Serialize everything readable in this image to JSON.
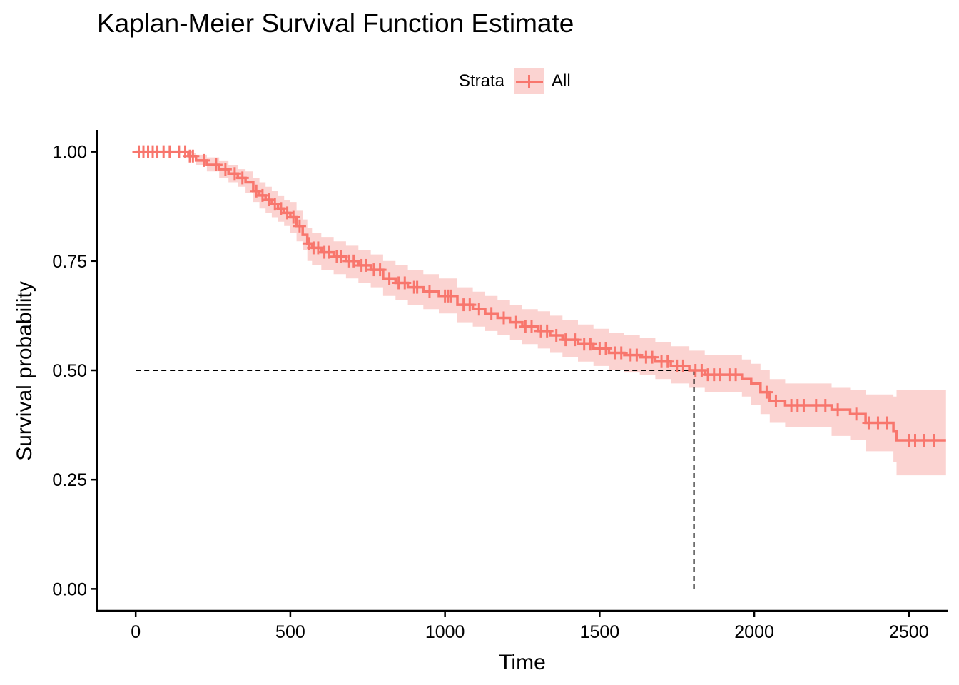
{
  "chart_data": {
    "type": "line",
    "title": "Kaplan-Meier Survival Function Estimate",
    "xlabel": "Time",
    "ylabel": "Survival probability",
    "xlim": [
      -125,
      2625
    ],
    "ylim": [
      -0.05,
      1.05
    ],
    "xticks": [
      0,
      500,
      1000,
      1500,
      2000,
      2500
    ],
    "yticks": [
      0.0,
      0.25,
      0.5,
      0.75,
      1.0
    ],
    "xtick_labels": [
      "0",
      "500",
      "1000",
      "1500",
      "2000",
      "2500"
    ],
    "ytick_labels": [
      "0.00",
      "0.25",
      "0.50",
      "0.75",
      "1.00"
    ],
    "grid": false,
    "legend": {
      "title": "Strata",
      "position": "top",
      "entries": [
        "All"
      ]
    },
    "colors": {
      "line": "#F8766D",
      "band": "#FBD3D1",
      "median": "#000000"
    },
    "series": [
      {
        "name": "All",
        "x": [
          0,
          170,
          195,
          230,
          270,
          300,
          330,
          355,
          380,
          400,
          420,
          440,
          460,
          480,
          500,
          520,
          540,
          555,
          570,
          600,
          640,
          680,
          720,
          760,
          800,
          840,
          880,
          930,
          980,
          1040,
          1090,
          1130,
          1170,
          1210,
          1250,
          1300,
          1340,
          1380,
          1430,
          1480,
          1530,
          1580,
          1630,
          1680,
          1730,
          1790,
          1840,
          1900,
          1960,
          1990,
          2020,
          2050,
          2100,
          2180,
          2250,
          2290,
          2310,
          2360,
          2420,
          2450,
          2460,
          2620
        ],
        "y": [
          1.0,
          0.99,
          0.98,
          0.97,
          0.96,
          0.95,
          0.94,
          0.93,
          0.91,
          0.9,
          0.89,
          0.88,
          0.87,
          0.86,
          0.85,
          0.83,
          0.81,
          0.79,
          0.78,
          0.77,
          0.76,
          0.75,
          0.74,
          0.73,
          0.71,
          0.7,
          0.69,
          0.68,
          0.67,
          0.65,
          0.64,
          0.63,
          0.62,
          0.61,
          0.6,
          0.59,
          0.58,
          0.57,
          0.56,
          0.55,
          0.54,
          0.535,
          0.53,
          0.52,
          0.51,
          0.5,
          0.49,
          0.49,
          0.48,
          0.47,
          0.45,
          0.43,
          0.42,
          0.42,
          0.41,
          0.41,
          0.4,
          0.38,
          0.38,
          0.36,
          0.34,
          0.34
        ],
        "lower": [
          1.0,
          0.985,
          0.97,
          0.955,
          0.94,
          0.93,
          0.92,
          0.905,
          0.885,
          0.87,
          0.86,
          0.85,
          0.84,
          0.83,
          0.815,
          0.795,
          0.775,
          0.75,
          0.74,
          0.73,
          0.72,
          0.71,
          0.7,
          0.69,
          0.67,
          0.66,
          0.65,
          0.64,
          0.63,
          0.61,
          0.6,
          0.59,
          0.58,
          0.57,
          0.56,
          0.55,
          0.54,
          0.53,
          0.52,
          0.51,
          0.5,
          0.495,
          0.49,
          0.48,
          0.47,
          0.46,
          0.45,
          0.45,
          0.44,
          0.42,
          0.4,
          0.38,
          0.37,
          0.37,
          0.35,
          0.35,
          0.34,
          0.315,
          0.315,
          0.29,
          0.26,
          0.26
        ],
        "upper": [
          1.0,
          0.997,
          0.993,
          0.987,
          0.98,
          0.97,
          0.96,
          0.955,
          0.94,
          0.93,
          0.92,
          0.91,
          0.9,
          0.89,
          0.885,
          0.865,
          0.845,
          0.825,
          0.815,
          0.805,
          0.795,
          0.785,
          0.775,
          0.765,
          0.75,
          0.74,
          0.73,
          0.72,
          0.71,
          0.69,
          0.68,
          0.67,
          0.66,
          0.65,
          0.64,
          0.635,
          0.625,
          0.615,
          0.605,
          0.595,
          0.585,
          0.58,
          0.575,
          0.565,
          0.555,
          0.545,
          0.535,
          0.535,
          0.525,
          0.515,
          0.5,
          0.48,
          0.47,
          0.47,
          0.46,
          0.46,
          0.455,
          0.445,
          0.445,
          0.44,
          0.455,
          0.455
        ],
        "censored": [
          10,
          25,
          40,
          55,
          70,
          90,
          110,
          140,
          160,
          175,
          185,
          220,
          260,
          290,
          320,
          345,
          390,
          410,
          430,
          450,
          470,
          490,
          510,
          530,
          560,
          575,
          590,
          610,
          625,
          650,
          665,
          690,
          705,
          730,
          745,
          770,
          790,
          820,
          850,
          870,
          900,
          910,
          950,
          1000,
          1010,
          1020,
          1060,
          1080,
          1110,
          1150,
          1190,
          1230,
          1260,
          1280,
          1310,
          1330,
          1360,
          1390,
          1420,
          1450,
          1470,
          1500,
          1520,
          1550,
          1570,
          1600,
          1620,
          1650,
          1670,
          1700,
          1720,
          1750,
          1770,
          1810,
          1830,
          1850,
          1870,
          1890,
          1920,
          1940,
          2040,
          2070,
          2120,
          2140,
          2160,
          2200,
          2230,
          2270,
          2330,
          2370,
          2400,
          2430,
          2500,
          2520,
          2550,
          2580
        ]
      }
    ],
    "median_survival": {
      "time": 1805,
      "probability": 0.5
    }
  }
}
